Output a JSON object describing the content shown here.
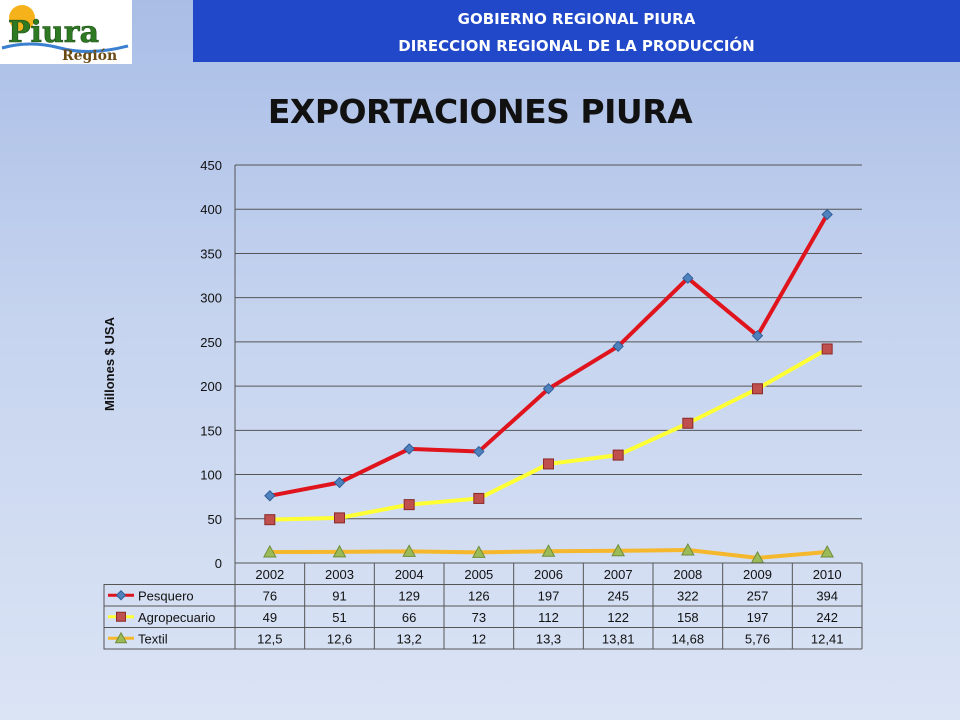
{
  "header": {
    "logo_text_main": "Piura",
    "logo_text_sub": "Región",
    "line1": "GOBIERNO REGIONAL PIURA",
    "line2": "DIRECCION REGIONAL DE LA PRODUCCIÓN"
  },
  "page_title": "EXPORTACIONES PIURA",
  "colors": {
    "banner": "#2048c8",
    "pesquero_line": "#e0141c",
    "pesquero_marker": "#4f81bd",
    "agro_line": "#ffff33",
    "agro_marker": "#c0504d",
    "textil_line": "#f5b82c",
    "textil_marker": "#9bbb59"
  },
  "chart_data": {
    "type": "line",
    "title": "",
    "xlabel": "",
    "ylabel": "Millones $ USA",
    "ylim": [
      0,
      450
    ],
    "yticks": [
      "0",
      "50",
      "100",
      "150",
      "200",
      "250",
      "300",
      "350",
      "400",
      "450"
    ],
    "grid": true,
    "legend_placement": "data-table",
    "categories": [
      "2002",
      "2003",
      "2004",
      "2005",
      "2006",
      "2007",
      "2008",
      "2009",
      "2010"
    ],
    "series": [
      {
        "name": "Pesquero",
        "values": [
          76,
          91,
          129,
          126,
          197,
          245,
          322,
          257,
          394
        ],
        "labels": [
          "76",
          "91",
          "129",
          "126",
          "197",
          "245",
          "322",
          "257",
          "394"
        ]
      },
      {
        "name": "Agropecuario",
        "values": [
          49,
          51,
          66,
          73,
          112,
          122,
          158,
          197,
          242
        ],
        "labels": [
          "49",
          "51",
          "66",
          "73",
          "112",
          "122",
          "158",
          "197",
          "242"
        ]
      },
      {
        "name": "Textil",
        "values": [
          12.5,
          12.6,
          13.2,
          12,
          13.3,
          13.81,
          14.68,
          5.76,
          12.41
        ],
        "labels": [
          "12,5",
          "12,6",
          "13,2",
          "12",
          "13,3",
          "13,81",
          "14,68",
          "5,76",
          "12,41"
        ]
      }
    ]
  }
}
